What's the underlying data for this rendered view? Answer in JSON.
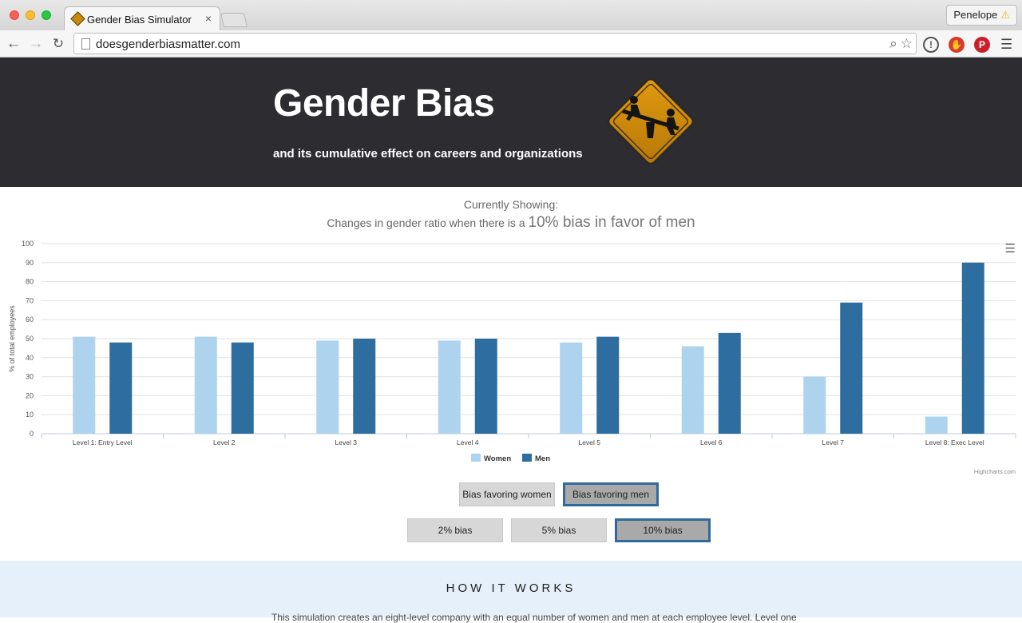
{
  "browser": {
    "tab_title": "Gender Bias Simulator",
    "tab_close": "×",
    "profile_name": "Penelope",
    "profile_warning": "⚠",
    "url": "doesgenderbiasmatter.com"
  },
  "hero": {
    "title": "Gender Bias",
    "subtitle": "and its cumulative effect on careers and organizations"
  },
  "showing": {
    "label": "Currently Showing:",
    "prefix": "Changes in gender ratio when there is a ",
    "emphasis": "10% bias in favor of men"
  },
  "chart_data": {
    "type": "bar",
    "categories": [
      "Level 1: Entry Level",
      "Level 2",
      "Level 3",
      "Level 4",
      "Level 5",
      "Level 6",
      "Level 7",
      "Level 8: Exec Level"
    ],
    "series": [
      {
        "name": "Women",
        "color": "#aed3ee",
        "values": [
          51,
          51,
          49,
          49,
          48,
          46,
          30,
          9
        ]
      },
      {
        "name": "Men",
        "color": "#2e6d9f",
        "values": [
          48,
          48,
          50,
          50,
          51,
          53,
          69,
          90
        ]
      }
    ],
    "ylabel": "% of total employees",
    "ylim": [
      0,
      100
    ],
    "yticks": [
      0,
      10,
      20,
      30,
      40,
      50,
      60,
      70,
      80,
      90,
      100
    ],
    "grid": true,
    "legend": "bottom-center",
    "credit": "Highcharts.com"
  },
  "controls": {
    "bias_women": "Bias favoring women",
    "bias_men": "Bias favoring men",
    "bias_2": "2% bias",
    "bias_5": "5% bias",
    "bias_10": "10% bias"
  },
  "how": {
    "title": "HOW IT WORKS",
    "text": "This simulation creates an eight-level company with an equal number of women and men at each employee level. Level one"
  }
}
